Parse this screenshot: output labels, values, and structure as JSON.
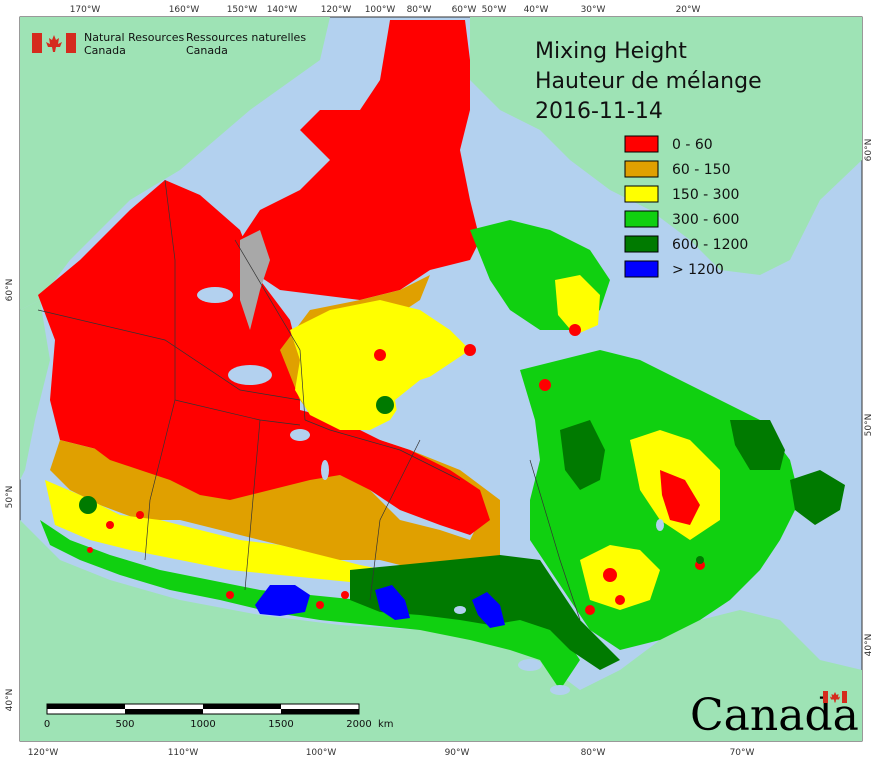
{
  "agency": {
    "en_line1": "Natural Resources",
    "en_line2": "Canada",
    "fr_line1": "Ressources naturelles",
    "fr_line2": "Canada"
  },
  "title": {
    "line1": "Mixing Height",
    "line2": "Hauteur de mélange",
    "line3": "2016-11-14"
  },
  "legend": [
    {
      "label": "0 - 60",
      "color": "#ff0000"
    },
    {
      "label": "60 - 150",
      "color": "#e0a000"
    },
    {
      "label": "150 - 300",
      "color": "#ffff00"
    },
    {
      "label": "300 - 600",
      "color": "#10d010"
    },
    {
      "label": "600 - 1200",
      "color": "#007a00"
    },
    {
      "label": "> 1200",
      "color": "#0000ff"
    }
  ],
  "top_ticks": [
    "170°W",
    "160°W",
    "150°W",
    "140°W",
    "120°W",
    "100°W",
    "80°W",
    "60°W",
    "50°W",
    "40°W",
    "30°W",
    "20°W"
  ],
  "bottom_ticks": [
    "120°W",
    "110°W",
    "100°W",
    "90°W",
    "80°W",
    "70°W"
  ],
  "left_ticks": [
    "60°N",
    "50°N",
    "40°N"
  ],
  "right_ticks": [
    "60°N",
    "50°N",
    "40°N"
  ],
  "scale": {
    "labels": [
      "0",
      "500",
      "1000",
      "1500",
      "2000"
    ],
    "unit": "km"
  },
  "wordmark": "Canada",
  "colors": {
    "ocean": "#b3d1ef",
    "land_other": "#9ee3b5",
    "nodata": "#a8a8a8"
  }
}
